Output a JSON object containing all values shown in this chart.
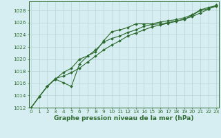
{
  "xlabel": "Graphe pression niveau de la mer (hPa)",
  "x": [
    0,
    1,
    2,
    3,
    4,
    5,
    6,
    7,
    8,
    9,
    10,
    11,
    12,
    13,
    14,
    15,
    16,
    17,
    18,
    19,
    20,
    21,
    22,
    23
  ],
  "line1": [
    1012.0,
    1013.8,
    1015.5,
    1016.7,
    1016.1,
    1015.5,
    1019.2,
    1020.5,
    1021.5,
    1022.8,
    1023.4,
    1023.8,
    1024.4,
    1024.8,
    1025.4,
    1025.7,
    1025.8,
    1026.0,
    1026.3,
    1026.5,
    1027.2,
    1028.0,
    1028.3,
    1028.7
  ],
  "line2": [
    1012.0,
    1013.8,
    1015.5,
    1016.7,
    1017.8,
    1018.5,
    1020.0,
    1020.5,
    1021.2,
    1023.0,
    1024.5,
    1024.8,
    1025.2,
    1025.8,
    1025.8,
    1025.8,
    1026.1,
    1026.3,
    1026.5,
    1026.8,
    1027.3,
    1028.1,
    1028.5,
    1028.8
  ],
  "line3": [
    1012.0,
    1013.8,
    1015.5,
    1016.8,
    1017.2,
    1017.8,
    1018.5,
    1019.5,
    1020.5,
    1021.5,
    1022.3,
    1023.0,
    1023.8,
    1024.3,
    1024.8,
    1025.3,
    1025.6,
    1025.9,
    1026.2,
    1026.6,
    1027.0,
    1027.6,
    1028.2,
    1028.9
  ],
  "line_color": "#2d6a2d",
  "bg_color": "#d6eef2",
  "grid_color": "#b8d4d8",
  "ylim": [
    1012,
    1029.5
  ],
  "yticks": [
    1012,
    1014,
    1016,
    1018,
    1020,
    1022,
    1024,
    1026,
    1028
  ],
  "marker": "D",
  "markersize": 2.0,
  "linewidth": 0.8,
  "label_fontsize": 6.5,
  "tick_fontsize": 5.2
}
